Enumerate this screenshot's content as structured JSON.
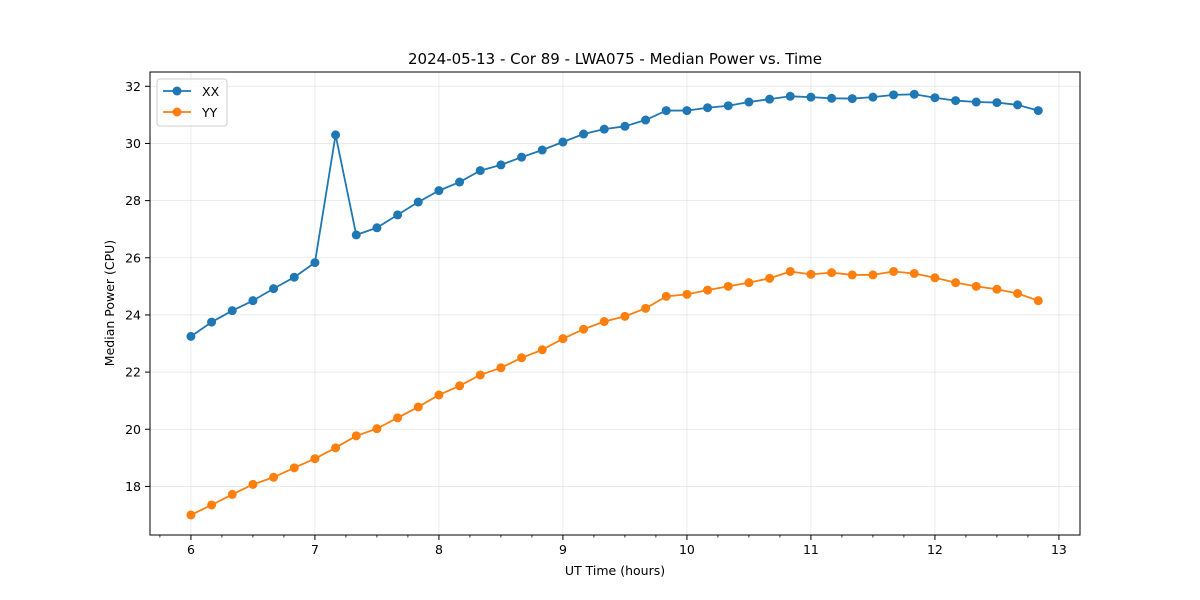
{
  "chart_data": {
    "type": "line",
    "title": "2024-05-13 - Cor 89 - LWA075 - Median Power vs. Time",
    "xlabel": "UT Time (hours)",
    "ylabel": "Median Power (CPU)",
    "xlim": [
      5.67,
      13.17
    ],
    "ylim": [
      16.3,
      32.5
    ],
    "x_ticks": [
      6,
      7,
      8,
      9,
      10,
      11,
      12,
      13
    ],
    "x_tick_labels": [
      "6",
      "7",
      "8",
      "9",
      "10",
      "11",
      "12",
      "13"
    ],
    "x_minor_step": 0.25,
    "y_ticks": [
      18,
      20,
      22,
      24,
      26,
      28,
      30,
      32
    ],
    "y_tick_labels": [
      "18",
      "20",
      "22",
      "24",
      "26",
      "28",
      "30",
      "32"
    ],
    "grid": true,
    "legend_position": "top-left",
    "x": [
      6.0,
      6.1667,
      6.3333,
      6.5,
      6.6667,
      6.8333,
      7.0,
      7.1667,
      7.3333,
      7.5,
      7.6667,
      7.8333,
      8.0,
      8.1667,
      8.3333,
      8.5,
      8.6667,
      8.8333,
      9.0,
      9.1667,
      9.3333,
      9.5,
      9.6667,
      9.8333,
      10.0,
      10.1667,
      10.3333,
      10.5,
      10.6667,
      10.8333,
      11.0,
      11.1667,
      11.3333,
      11.5,
      11.6667,
      11.8333,
      12.0,
      12.1667,
      12.3333,
      12.5,
      12.6667,
      12.8333
    ],
    "series": [
      {
        "name": "XX",
        "color": "#1f77b4",
        "values": [
          23.25,
          23.75,
          24.15,
          24.5,
          24.92,
          25.32,
          25.83,
          30.3,
          26.8,
          27.05,
          27.5,
          27.95,
          28.35,
          28.65,
          29.05,
          29.25,
          29.52,
          29.77,
          30.05,
          30.33,
          30.5,
          30.6,
          30.82,
          31.15,
          31.15,
          31.25,
          31.32,
          31.45,
          31.55,
          31.65,
          31.62,
          31.58,
          31.57,
          31.62,
          31.7,
          31.72,
          31.6,
          31.5,
          31.45,
          31.43,
          31.35,
          31.15
        ]
      },
      {
        "name": "YY",
        "color": "#ff7f0e",
        "values": [
          17.0,
          17.35,
          17.72,
          18.07,
          18.32,
          18.65,
          18.97,
          19.35,
          19.77,
          20.02,
          20.4,
          20.78,
          21.2,
          21.52,
          21.9,
          22.15,
          22.5,
          22.78,
          23.17,
          23.5,
          23.77,
          23.95,
          24.23,
          24.65,
          24.72,
          24.87,
          25.0,
          25.13,
          25.28,
          25.52,
          25.42,
          25.48,
          25.4,
          25.4,
          25.52,
          25.45,
          25.3,
          25.13,
          25.0,
          24.9,
          24.75,
          24.5
        ]
      }
    ]
  }
}
